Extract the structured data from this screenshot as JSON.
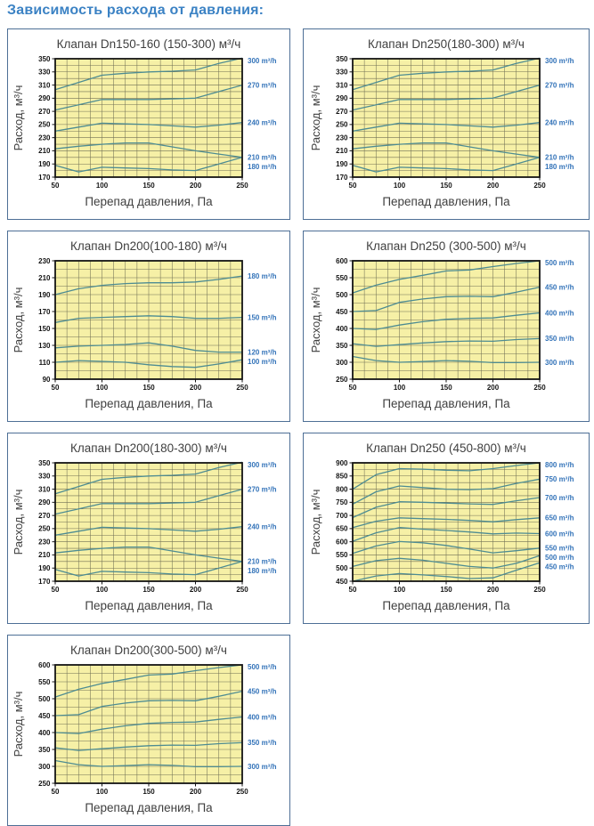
{
  "page": {
    "heading": "Зависимость расхода от давления:"
  },
  "colors": {
    "heading": "#3b82c4",
    "card_border": "#4e6f96",
    "plot_bg": "#f6f0a6",
    "grid_line": "#63634c",
    "plot_border": "#141414",
    "series_line": "#4e8c92",
    "series_label": "#3373b9",
    "axis_text": "#151515",
    "title_text": "#3f3f3f"
  },
  "chart_data": [
    {
      "type": "line",
      "title": "Клапан Dn150-160 (150-300) м³/ч",
      "column": "left",
      "xlabel": "Перепад давления, Па",
      "ylabel": "Расход, м³/ч",
      "xlim": [
        50,
        250
      ],
      "ylim": [
        170,
        350
      ],
      "x_ticks": [
        50,
        100,
        150,
        200,
        250
      ],
      "y_ticks": [
        170,
        190,
        210,
        230,
        250,
        270,
        290,
        310,
        330,
        350
      ],
      "x_minor": 12.5,
      "y_minor": 10,
      "grid": true,
      "legend_position": "right",
      "x": [
        50,
        75,
        100,
        125,
        150,
        175,
        200,
        225,
        250
      ],
      "series": [
        {
          "name": "300 m³/h",
          "values": [
            303,
            314,
            325,
            328,
            330,
            331,
            333,
            343,
            351
          ]
        },
        {
          "name": "270 m³/h",
          "values": [
            272,
            280,
            288,
            288,
            288,
            289,
            290,
            300,
            310
          ]
        },
        {
          "name": "240 m³/h",
          "values": [
            240,
            246,
            252,
            251,
            250,
            248,
            246,
            249,
            253
          ]
        },
        {
          "name": "210 m³/h",
          "values": [
            213,
            217,
            220,
            222,
            222,
            216,
            210,
            205,
            200
          ]
        },
        {
          "name": "180 m³/h",
          "values": [
            188,
            178,
            185,
            184,
            183,
            181,
            180,
            190,
            200
          ]
        }
      ]
    },
    {
      "type": "line",
      "title": "Клапан Dn250(180-300) м³/ч",
      "column": "right",
      "xlabel": "Перепад давления, Па",
      "ylabel": "Расход, м³/ч",
      "xlim": [
        50,
        250
      ],
      "ylim": [
        170,
        350
      ],
      "x_ticks": [
        50,
        100,
        150,
        200,
        250
      ],
      "y_ticks": [
        170,
        190,
        210,
        230,
        250,
        270,
        290,
        310,
        330,
        350
      ],
      "x_minor": 12.5,
      "y_minor": 10,
      "grid": true,
      "legend_position": "right",
      "x": [
        50,
        75,
        100,
        125,
        150,
        175,
        200,
        225,
        250
      ],
      "series": [
        {
          "name": "300 m³/h",
          "values": [
            303,
            314,
            325,
            328,
            330,
            331,
            333,
            343,
            351
          ]
        },
        {
          "name": "270 m³/h",
          "values": [
            272,
            280,
            288,
            288,
            288,
            289,
            290,
            300,
            310
          ]
        },
        {
          "name": "240 m³/h",
          "values": [
            240,
            246,
            252,
            251,
            250,
            248,
            246,
            249,
            253
          ]
        },
        {
          "name": "210 m³/h",
          "values": [
            213,
            217,
            220,
            222,
            222,
            216,
            210,
            205,
            200
          ]
        },
        {
          "name": "180 m³/h",
          "values": [
            188,
            178,
            185,
            184,
            183,
            181,
            180,
            190,
            200
          ]
        }
      ]
    },
    {
      "type": "line",
      "title": "Клапан Dn200(100-180) м³/ч",
      "column": "left",
      "xlabel": "Перепад давления, Па",
      "ylabel": "Расход, м³/ч",
      "xlim": [
        50,
        250
      ],
      "ylim": [
        90,
        230
      ],
      "x_ticks": [
        50,
        100,
        150,
        200,
        250
      ],
      "y_ticks": [
        90,
        110,
        130,
        150,
        170,
        190,
        210,
        230
      ],
      "x_minor": 12.5,
      "y_minor": 10,
      "grid": true,
      "legend_position": "right",
      "x": [
        50,
        75,
        100,
        125,
        150,
        175,
        200,
        225,
        250
      ],
      "series": [
        {
          "name": "180 m³/h",
          "values": [
            190,
            197,
            201,
            203,
            204,
            204,
            205,
            208,
            212
          ]
        },
        {
          "name": "150 m³/h",
          "values": [
            157,
            162,
            163,
            164,
            165,
            164,
            162,
            162,
            163
          ]
        },
        {
          "name": "120 m³/h",
          "values": [
            127,
            129,
            130,
            131,
            133,
            129,
            124,
            122,
            122
          ]
        },
        {
          "name": "100 m³/h",
          "values": [
            110,
            112,
            111,
            110,
            107,
            105,
            104,
            108,
            113
          ]
        }
      ]
    },
    {
      "type": "line",
      "title": "Клапан Dn250 (300-500) м³/ч",
      "column": "right",
      "xlabel": "Перепад давления, Па",
      "ylabel": "Расход, м³/ч",
      "xlim": [
        50,
        250
      ],
      "ylim": [
        250,
        600
      ],
      "x_ticks": [
        50,
        100,
        150,
        200,
        250
      ],
      "y_ticks": [
        250,
        300,
        350,
        400,
        450,
        500,
        550,
        600
      ],
      "x_minor": 12.5,
      "y_minor": 25,
      "grid": true,
      "legend_position": "right",
      "x": [
        50,
        75,
        100,
        125,
        150,
        175,
        200,
        225,
        250
      ],
      "series": [
        {
          "name": "500 m³/h",
          "values": [
            505,
            528,
            545,
            557,
            570,
            573,
            583,
            592,
            600
          ]
        },
        {
          "name": "450 m³/h",
          "values": [
            450,
            453,
            477,
            487,
            494,
            495,
            494,
            507,
            522
          ]
        },
        {
          "name": "400 m³/h",
          "values": [
            400,
            397,
            410,
            420,
            427,
            430,
            431,
            439,
            446
          ]
        },
        {
          "name": "350 m³/h",
          "values": [
            355,
            347,
            352,
            357,
            361,
            363,
            362,
            367,
            370
          ]
        },
        {
          "name": "300 m³/h",
          "values": [
            317,
            305,
            300,
            302,
            305,
            303,
            299,
            299,
            300
          ]
        }
      ]
    },
    {
      "type": "line",
      "title": "Клапан Dn200(180-300) м³/ч",
      "column": "left",
      "xlabel": "Перепад давления, Па",
      "ylabel": "Расход, м³/ч",
      "xlim": [
        50,
        250
      ],
      "ylim": [
        170,
        350
      ],
      "x_ticks": [
        50,
        100,
        150,
        200,
        250
      ],
      "y_ticks": [
        170,
        190,
        210,
        230,
        250,
        270,
        290,
        310,
        330,
        350
      ],
      "x_minor": 12.5,
      "y_minor": 10,
      "grid": true,
      "legend_position": "right",
      "x": [
        50,
        75,
        100,
        125,
        150,
        175,
        200,
        225,
        250
      ],
      "series": [
        {
          "name": "300 m³/h",
          "values": [
            303,
            314,
            325,
            328,
            330,
            331,
            333,
            343,
            351
          ]
        },
        {
          "name": "270 m³/h",
          "values": [
            272,
            280,
            288,
            288,
            288,
            289,
            290,
            300,
            310
          ]
        },
        {
          "name": "240 m³/h",
          "values": [
            240,
            246,
            252,
            251,
            250,
            248,
            246,
            249,
            253
          ]
        },
        {
          "name": "210 m³/h",
          "values": [
            213,
            217,
            220,
            222,
            222,
            216,
            210,
            205,
            200
          ]
        },
        {
          "name": "180 m³/h",
          "values": [
            188,
            178,
            185,
            184,
            183,
            181,
            180,
            190,
            200
          ]
        }
      ]
    },
    {
      "type": "line",
      "title": "Клапан Dn250 (450-800) м³/ч",
      "column": "right",
      "xlabel": "Перепад давления, Па",
      "ylabel": "Расход, м³/ч",
      "xlim": [
        50,
        250
      ],
      "ylim": [
        450,
        900
      ],
      "x_ticks": [
        50,
        100,
        150,
        200,
        250
      ],
      "y_ticks": [
        450,
        500,
        550,
        600,
        650,
        700,
        750,
        800,
        850,
        900
      ],
      "x_minor": 12.5,
      "y_minor": 25,
      "grid": true,
      "legend_position": "right",
      "x": [
        50,
        75,
        100,
        125,
        150,
        175,
        200,
        225,
        250
      ],
      "series": [
        {
          "name": "800 m³/h",
          "values": [
            800,
            855,
            878,
            876,
            872,
            870,
            878,
            890,
            900
          ]
        },
        {
          "name": "750 m³/h",
          "values": [
            743,
            790,
            812,
            806,
            800,
            798,
            802,
            822,
            838
          ]
        },
        {
          "name": "700 m³/h",
          "values": [
            692,
            731,
            752,
            750,
            747,
            744,
            742,
            756,
            768
          ]
        },
        {
          "name": "650 m³/h",
          "values": [
            654,
            678,
            691,
            688,
            685,
            681,
            676,
            684,
            691
          ]
        },
        {
          "name": "600 m³/h",
          "values": [
            602,
            634,
            654,
            648,
            643,
            637,
            630,
            633,
            631
          ]
        },
        {
          "name": "550 m³/h",
          "values": [
            556,
            584,
            601,
            596,
            586,
            572,
            558,
            566,
            576
          ]
        },
        {
          "name": "500 m³/h",
          "values": [
            506,
            528,
            537,
            530,
            518,
            506,
            500,
            518,
            547
          ]
        },
        {
          "name": "450 m³/h",
          "values": [
            450,
            470,
            479,
            474,
            468,
            460,
            463,
            492,
            520
          ]
        }
      ]
    },
    {
      "type": "line",
      "title": "Клапан Dn200(300-500) м³/ч",
      "column": "left",
      "xlabel": "Перепад давления, Па",
      "ylabel": "Расход, м³/ч",
      "xlim": [
        50,
        250
      ],
      "ylim": [
        250,
        600
      ],
      "x_ticks": [
        50,
        100,
        150,
        200,
        250
      ],
      "y_ticks": [
        250,
        300,
        350,
        400,
        450,
        500,
        550,
        600
      ],
      "x_minor": 12.5,
      "y_minor": 25,
      "grid": true,
      "legend_position": "right",
      "x": [
        50,
        75,
        100,
        125,
        150,
        175,
        200,
        225,
        250
      ],
      "series": [
        {
          "name": "500 m³/h",
          "values": [
            505,
            528,
            545,
            557,
            570,
            573,
            583,
            592,
            600
          ]
        },
        {
          "name": "450 m³/h",
          "values": [
            450,
            453,
            477,
            487,
            494,
            495,
            494,
            507,
            522
          ]
        },
        {
          "name": "400 m³/h",
          "values": [
            400,
            397,
            410,
            420,
            427,
            430,
            431,
            439,
            446
          ]
        },
        {
          "name": "350 m³/h",
          "values": [
            355,
            347,
            352,
            357,
            361,
            363,
            362,
            367,
            370
          ]
        },
        {
          "name": "300 m³/h",
          "values": [
            317,
            305,
            300,
            302,
            305,
            303,
            299,
            299,
            300
          ]
        }
      ]
    }
  ]
}
